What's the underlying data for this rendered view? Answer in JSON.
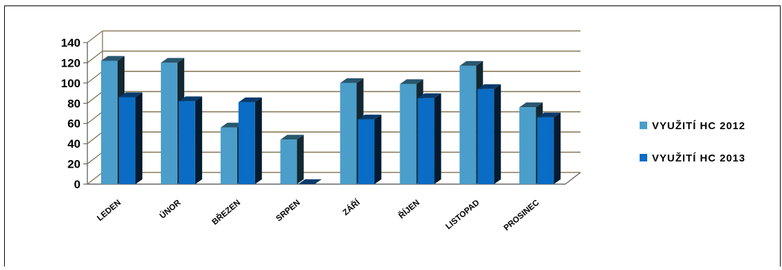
{
  "chart_data": {
    "type": "bar",
    "categories": [
      "LEDEN",
      "ÚNOR",
      "BŘEZEN",
      "SRPEN",
      "ZÁŘÍ",
      "ŘÍJEN",
      "LISTOPAD",
      "PROSINEC"
    ],
    "series": [
      {
        "name": "VYUŽITÍ HC 2012",
        "values": [
          122,
          120,
          56,
          44,
          100,
          99,
          117,
          76
        ],
        "color": "#4a9ec9"
      },
      {
        "name": "VYUŽITÍ HC 2013",
        "values": [
          86,
          82,
          81,
          0,
          64,
          85,
          94,
          66
        ],
        "color": "#0a6cc4"
      }
    ],
    "y_ticks": [
      "0",
      "20",
      "40",
      "60",
      "80",
      "100",
      "120",
      "140"
    ],
    "ylim": [
      0,
      140
    ],
    "grid": true,
    "grid_color": "#8a7a5a",
    "legend_position": "right",
    "three_d": true
  },
  "legend": {
    "items": [
      {
        "label": "VYUŽITÍ HC  2012",
        "color": "#4a9ec9"
      },
      {
        "label": "VYUŽITÍ HC  2013",
        "color": "#0a6cc4"
      }
    ]
  }
}
